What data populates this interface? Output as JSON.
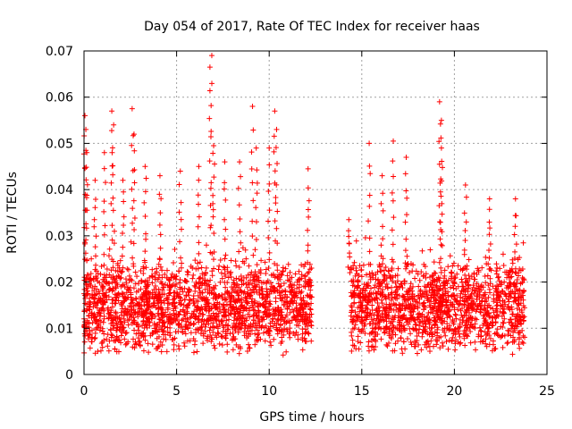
{
  "chart_data": {
    "type": "scatter",
    "title": "Day 054 of 2017, Rate Of TEC Index for receiver haas",
    "xlabel": "GPS time / hours",
    "ylabel": "ROTI / TECUs",
    "xlim": [
      0,
      25
    ],
    "ylim": [
      0,
      0.07
    ],
    "xticks": [
      0,
      5,
      10,
      15,
      20,
      25
    ],
    "xtick_labels": [
      "0",
      "5",
      "10",
      "15",
      "20",
      "25"
    ],
    "yticks": [
      0,
      0.01,
      0.02,
      0.03,
      0.04,
      0.05,
      0.06,
      0.07
    ],
    "ytick_labels": [
      "0",
      "0.01",
      "0.02",
      "0.03",
      "0.04",
      "0.05",
      "0.06",
      "0.07"
    ],
    "grid": true,
    "marker": "+",
    "series": [
      {
        "name": "ROTI",
        "color": "#ff0000",
        "segments": [
          {
            "x_start": 0.0,
            "x_end": 12.3,
            "typical_min": 0.004,
            "typical_max": 0.025,
            "median": 0.012
          },
          {
            "x_start": 14.4,
            "x_end": 23.8,
            "typical_min": 0.004,
            "typical_max": 0.025,
            "median": 0.011
          }
        ],
        "peaks": [
          {
            "x": 0.05,
            "y": 0.056
          },
          {
            "x": 0.1,
            "y": 0.053
          },
          {
            "x": 0.15,
            "y": 0.048
          },
          {
            "x": 0.6,
            "y": 0.042
          },
          {
            "x": 1.1,
            "y": 0.048
          },
          {
            "x": 1.5,
            "y": 0.057
          },
          {
            "x": 1.6,
            "y": 0.054
          },
          {
            "x": 2.1,
            "y": 0.042
          },
          {
            "x": 2.6,
            "y": 0.0575
          },
          {
            "x": 2.7,
            "y": 0.052
          },
          {
            "x": 3.3,
            "y": 0.045
          },
          {
            "x": 4.1,
            "y": 0.043
          },
          {
            "x": 5.2,
            "y": 0.044
          },
          {
            "x": 6.2,
            "y": 0.045
          },
          {
            "x": 6.8,
            "y": 0.0665
          },
          {
            "x": 6.9,
            "y": 0.069
          },
          {
            "x": 7.0,
            "y": 0.0495
          },
          {
            "x": 7.6,
            "y": 0.046
          },
          {
            "x": 8.4,
            "y": 0.046
          },
          {
            "x": 9.1,
            "y": 0.058
          },
          {
            "x": 9.3,
            "y": 0.049
          },
          {
            "x": 10.0,
            "y": 0.049
          },
          {
            "x": 10.3,
            "y": 0.057
          },
          {
            "x": 10.4,
            "y": 0.053
          },
          {
            "x": 12.1,
            "y": 0.0445
          },
          {
            "x": 14.3,
            "y": 0.0335
          },
          {
            "x": 15.4,
            "y": 0.05
          },
          {
            "x": 16.1,
            "y": 0.043
          },
          {
            "x": 16.7,
            "y": 0.0505
          },
          {
            "x": 17.4,
            "y": 0.047
          },
          {
            "x": 19.2,
            "y": 0.059
          },
          {
            "x": 19.3,
            "y": 0.055
          },
          {
            "x": 19.3,
            "y": 0.049
          },
          {
            "x": 20.6,
            "y": 0.041
          },
          {
            "x": 21.9,
            "y": 0.038
          },
          {
            "x": 23.3,
            "y": 0.038
          }
        ]
      }
    ]
  }
}
